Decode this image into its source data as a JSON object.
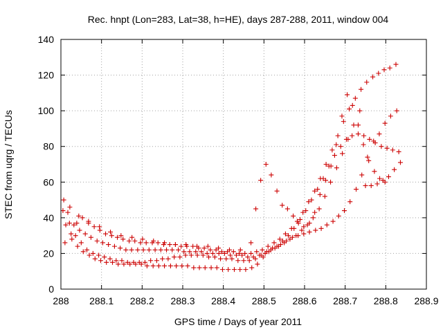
{
  "chart_data": {
    "type": "scatter",
    "title": "Rec. hnpt (Lon=283, Lat=38, h=HE), days 287-288, 2011, window 004",
    "xlabel": "GPS time / Days of year 2011",
    "ylabel": "STEC from uqrg / TECUs",
    "xlim": [
      288,
      288.9
    ],
    "ylim": [
      0,
      140
    ],
    "xticks": [
      "288",
      "288.1",
      "288.2",
      "288.3",
      "288.4",
      "288.5",
      "288.6",
      "288.7",
      "288.8",
      "288.9"
    ],
    "yticks": [
      "0",
      "20",
      "40",
      "60",
      "80",
      "100",
      "120",
      "140"
    ],
    "grid": true,
    "marker": "plus",
    "color": "#cc0000",
    "series": [
      {
        "x": [
          288.007,
          288.021,
          288.036,
          288.05,
          288.064,
          288.079,
          288.093,
          288.107,
          288.121,
          288.136,
          288.15,
          288.164,
          288.179,
          288.193,
          288.207,
          288.221,
          288.236,
          288.25,
          288.264,
          288.279,
          288.293,
          288.307,
          288.321,
          288.336,
          288.35,
          288.364,
          288.379,
          288.393,
          288.407,
          288.421,
          288.436,
          288.45,
          288.464,
          288.479,
          288.493,
          288.507,
          288.521,
          288.536,
          288.55,
          288.564,
          288.579,
          288.593,
          288.607,
          288.621,
          288.636,
          288.65,
          288.664,
          288.679,
          288.693,
          288.707,
          288.721,
          288.736,
          288.75,
          288.764,
          288.779,
          288.793,
          288.807,
          288.821,
          288.836
        ],
        "y": [
          50,
          37,
          30,
          26,
          22,
          20,
          19,
          18,
          17,
          16,
          16,
          15,
          15,
          15,
          15,
          16,
          16,
          17,
          17,
          18,
          18,
          19,
          19,
          19,
          19,
          18,
          18,
          17,
          17,
          17,
          16,
          16,
          16,
          17,
          19,
          21,
          23,
          24,
          26,
          28,
          30,
          33,
          36,
          40,
          45,
          52,
          60,
          68,
          76,
          84,
          92,
          100,
          58,
          58,
          59,
          61,
          63,
          67,
          71
        ]
      },
      {
        "x": [
          288.012,
          288.027,
          288.041,
          288.055,
          288.07,
          288.084,
          288.098,
          288.112,
          288.127,
          288.141,
          288.155,
          288.17,
          288.184,
          288.198,
          288.212,
          288.227,
          288.241,
          288.255,
          288.27,
          288.284,
          288.298,
          288.312,
          288.327,
          288.341,
          288.355,
          288.37,
          288.384,
          288.398,
          288.412,
          288.427,
          288.441,
          288.455,
          288.47,
          288.484,
          288.498,
          288.512,
          288.527,
          288.541,
          288.555,
          288.57,
          288.584,
          288.598,
          288.612,
          288.627,
          288.641,
          288.655,
          288.67,
          288.684,
          288.698,
          288.712,
          288.727,
          288.741,
          288.755,
          288.77,
          288.784,
          288.798,
          288.812,
          288.827
        ],
        "y": [
          36,
          28,
          24,
          21,
          19,
          17,
          16,
          15,
          15,
          14,
          14,
          14,
          14,
          14,
          13,
          13,
          13,
          13,
          13,
          13,
          13,
          13,
          12,
          12,
          12,
          12,
          12,
          11,
          11,
          11,
          11,
          11,
          12,
          14,
          18,
          21,
          23,
          25,
          27,
          29,
          30,
          31,
          32,
          33,
          34,
          36,
          38,
          41,
          44,
          49,
          56,
          64,
          74,
          83,
          87,
          93,
          97,
          100
        ]
      },
      {
        "x": [
          288.017,
          288.032,
          288.046,
          288.06,
          288.074,
          288.089,
          288.103,
          288.117,
          288.132,
          288.146,
          288.16,
          288.174,
          288.189,
          288.203,
          288.217,
          288.232,
          288.246,
          288.26,
          288.274,
          288.289,
          288.303,
          288.317,
          288.332,
          288.346,
          288.36,
          288.374,
          288.389,
          288.403,
          288.417,
          288.432,
          288.446,
          288.46,
          288.474,
          288.489,
          288.503,
          288.517,
          288.532,
          288.546,
          288.56,
          288.574,
          288.589,
          288.603,
          288.617,
          288.632,
          288.646,
          288.66,
          288.674,
          288.689,
          288.703,
          288.717,
          288.732,
          288.746,
          288.76,
          288.774,
          288.789,
          288.803,
          288.817,
          288.832
        ],
        "y": [
          43,
          36,
          33,
          31,
          29,
          27,
          26,
          25,
          24,
          23,
          22,
          22,
          22,
          22,
          22,
          22,
          22,
          22,
          22,
          22,
          21,
          21,
          21,
          21,
          20,
          20,
          20,
          20,
          19,
          19,
          19,
          18,
          18,
          19,
          20,
          22,
          24,
          27,
          30,
          34,
          39,
          44,
          50,
          56,
          62,
          69,
          75,
          80,
          84,
          86,
          87,
          86,
          84,
          82,
          80,
          79,
          78,
          77
        ]
      },
      {
        "x": [
          288.01,
          288.025,
          288.039,
          288.053,
          288.068,
          288.082,
          288.096,
          288.11,
          288.125,
          288.139,
          288.153,
          288.168,
          288.182,
          288.196,
          288.21,
          288.225,
          288.239,
          288.253,
          288.268,
          288.282,
          288.296,
          288.31,
          288.325,
          288.339,
          288.353,
          288.368,
          288.382,
          288.396,
          288.41,
          288.425,
          288.439,
          288.453,
          288.468,
          288.482,
          288.496,
          288.51,
          288.525,
          288.539,
          288.553,
          288.568,
          288.582,
          288.596,
          288.61,
          288.625,
          288.639,
          288.653,
          288.668,
          288.682,
          288.696,
          288.71,
          288.725,
          288.739,
          288.753,
          288.768,
          288.782,
          288.796,
          288.81,
          288.825
        ],
        "y": [
          26,
          31,
          37,
          40,
          38,
          35,
          33,
          31,
          30,
          29,
          28,
          27,
          27,
          26,
          26,
          26,
          26,
          25,
          25,
          25,
          24,
          24,
          24,
          23,
          23,
          22,
          22,
          21,
          21,
          21,
          20,
          20,
          20,
          21,
          22,
          24,
          26,
          28,
          31,
          34,
          38,
          43,
          49,
          55,
          62,
          70,
          78,
          86,
          94,
          101,
          107,
          112,
          116,
          119,
          121,
          123,
          124,
          126
        ]
      },
      {
        "x": [
          288.005,
          288.022,
          288.044,
          288.068,
          288.095,
          288.122,
          288.148,
          288.175,
          288.201,
          288.228,
          288.255,
          288.282,
          288.308,
          288.335,
          288.362,
          288.388,
          288.415,
          288.442,
          288.468,
          288.48,
          288.492,
          288.505,
          288.518,
          288.532,
          288.545,
          288.558,
          288.572,
          288.585,
          288.598,
          288.612,
          288.625,
          288.638,
          288.652,
          288.665,
          288.678,
          288.692,
          288.705,
          288.718,
          288.732,
          288.745,
          288.758,
          288.772,
          288.785,
          288.798
        ],
        "y": [
          44,
          46,
          41,
          37,
          35,
          32,
          30,
          29,
          28,
          27,
          26,
          25,
          25,
          24,
          24,
          23,
          22,
          22,
          26,
          45,
          61,
          70,
          64,
          55,
          47,
          45,
          41,
          37,
          35,
          37,
          43,
          53,
          61,
          69,
          81,
          97,
          109,
          103,
          92,
          81,
          72,
          66,
          62,
          60
        ]
      }
    ]
  }
}
